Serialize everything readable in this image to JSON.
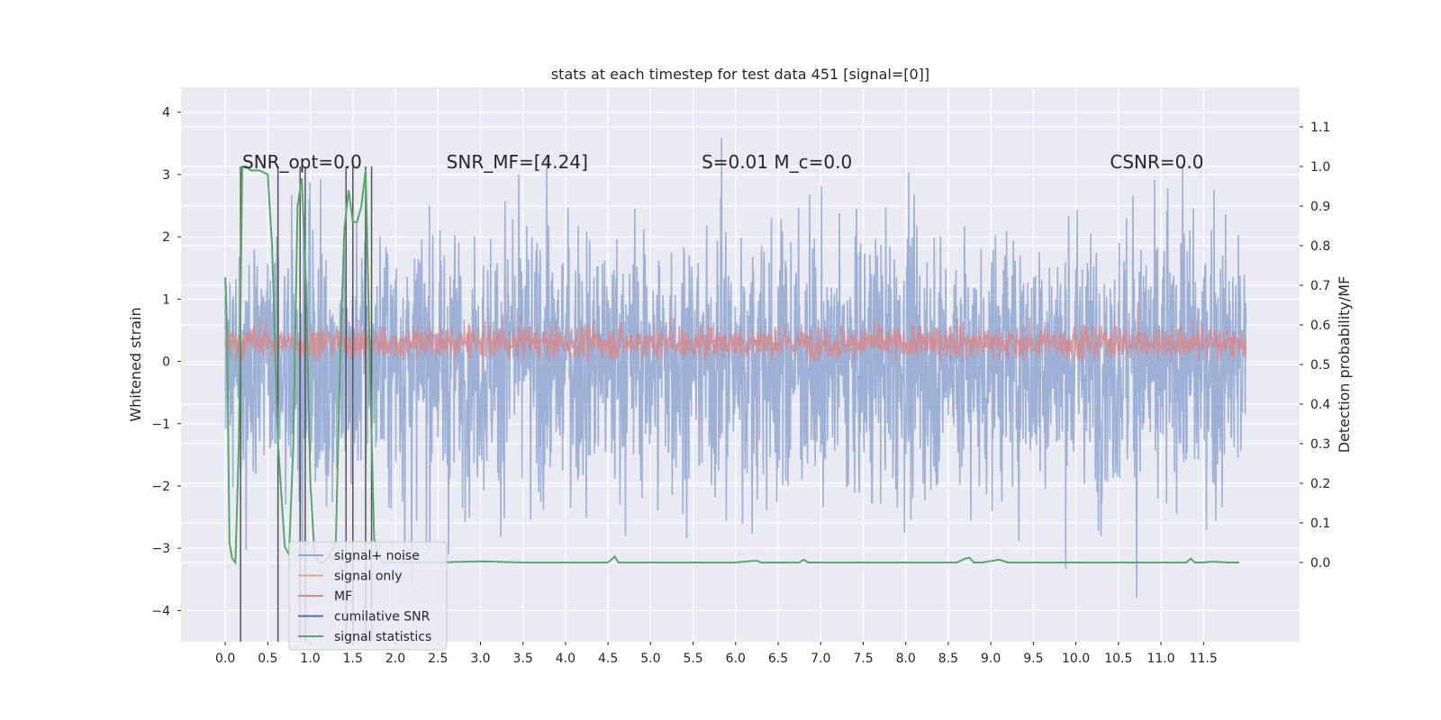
{
  "chart_data": {
    "type": "line",
    "title": "stats at each timestep for test data 451 [signal=[0]]",
    "xlabel": "",
    "ylabel": "Whitened strain",
    "ylabel_right": "Detection probability/MF",
    "xlim": [
      -0.52,
      12.63
    ],
    "ylim": [
      -4.5,
      4.4
    ],
    "ylim_right": [
      -0.2,
      1.2
    ],
    "x_ticks": [
      0.0,
      0.5,
      1.0,
      1.5,
      2.0,
      2.5,
      3.0,
      3.5,
      4.0,
      4.5,
      5.0,
      5.5,
      6.0,
      6.5,
      7.0,
      7.5,
      8.0,
      8.5,
      9.0,
      9.5,
      10.0,
      10.5,
      11.0,
      11.5
    ],
    "x_tick_labels": [
      "0.0",
      "0.5",
      "1.0",
      "1.5",
      "2.0",
      "2.5",
      "3.0",
      "3.5",
      "4.0",
      "4.5",
      "5.0",
      "5.5",
      "6.0",
      "6.5",
      "7.0",
      "7.5",
      "8.0",
      "8.5",
      "9.0",
      "9.5",
      "10.0",
      "10.5",
      "11.0",
      "11.5"
    ],
    "y_ticks": [
      -4,
      -3,
      -2,
      -1,
      0,
      1,
      2,
      3,
      4
    ],
    "y_tick_labels": [
      "−4",
      "−3",
      "−2",
      "−1",
      "0",
      "1",
      "2",
      "3",
      "4"
    ],
    "y_right_ticks": [
      0.0,
      0.1,
      0.2,
      0.3,
      0.4,
      0.5,
      0.6,
      0.7,
      0.8,
      0.9,
      1.0,
      1.1
    ],
    "y_right_tick_labels": [
      "0.0",
      "0.1",
      "0.2",
      "0.3",
      "0.4",
      "0.5",
      "0.6",
      "0.7",
      "0.8",
      "0.9",
      "1.0",
      "1.1"
    ],
    "annotations": [
      {
        "text": "SNR_opt=0.0",
        "x": 0.2,
        "y": 3.1
      },
      {
        "text": "SNR_MF=[4.24]",
        "x": 2.6,
        "y": 3.1
      },
      {
        "text": "S=0.01   M_c=0.0",
        "x": 5.6,
        "y": 3.1
      },
      {
        "text": "CSNR=0.0",
        "x": 10.4,
        "y": 3.1
      }
    ],
    "legend": {
      "position": "lower-left",
      "entries": [
        {
          "name": "signal+ noise",
          "color": "#8fa6d1"
        },
        {
          "name": "signal only",
          "color": "#e0a789"
        },
        {
          "name": "MF",
          "color": "#d68a8c"
        },
        {
          "name": "cumilative SNR",
          "color": "#4c72b0"
        },
        {
          "name": "signal statistics",
          "color": "#55a868"
        }
      ]
    },
    "grid": true,
    "series": [
      {
        "name": "signal+ noise",
        "axis": "left",
        "style": "dense-noise",
        "x_range": [
          0.0,
          12.0
        ],
        "envelope_typical": [
          -2.2,
          2.4
        ],
        "min": -4.1,
        "max": 4.0
      },
      {
        "name": "MF",
        "axis": "left",
        "style": "dense-noise",
        "x_range": [
          0.0,
          12.0
        ],
        "envelope_typical": [
          0.0,
          0.7
        ],
        "max": 1.0
      },
      {
        "name": "cumilative SNR",
        "axis": "right",
        "style": "vertical-lines",
        "x": [
          0.18,
          0.62,
          0.88,
          0.94,
          1.42,
          1.5,
          1.65,
          1.72
        ],
        "y_low": -0.2,
        "y_high": 1.0
      },
      {
        "name": "signal statistics",
        "axis": "right",
        "style": "line",
        "x": [
          0.0,
          0.02,
          0.05,
          0.08,
          0.12,
          0.16,
          0.2,
          0.25,
          0.3,
          0.4,
          0.5,
          0.55,
          0.62,
          0.7,
          0.75,
          0.8,
          0.85,
          0.9,
          0.95,
          1.0,
          1.05,
          1.1,
          1.15,
          1.2,
          1.3,
          1.35,
          1.4,
          1.45,
          1.5,
          1.55,
          1.6,
          1.65,
          1.7,
          1.75,
          1.8,
          1.85,
          1.9,
          2.0,
          2.5,
          3.0,
          3.5,
          4.0,
          4.5,
          4.58,
          4.62,
          4.68,
          5.0,
          6.0,
          6.2,
          6.25,
          6.3,
          6.75,
          6.8,
          6.85,
          7.0,
          8.0,
          8.6,
          8.7,
          8.75,
          8.8,
          8.9,
          9.1,
          9.2,
          9.5,
          10.0,
          11.0,
          11.3,
          11.35,
          11.4,
          11.5,
          11.6,
          11.8,
          11.92
        ],
        "y": [
          0.72,
          0.6,
          0.05,
          0.01,
          0.0,
          0.3,
          1.0,
          1.0,
          0.99,
          0.99,
          0.98,
          0.8,
          0.3,
          0.04,
          0.02,
          0.3,
          0.9,
          0.97,
          0.7,
          0.2,
          0.02,
          0.0,
          0.0,
          0.01,
          0.05,
          0.5,
          0.84,
          0.94,
          0.86,
          0.86,
          0.9,
          0.99,
          0.5,
          0.06,
          0.02,
          0.0,
          0.0,
          0.0,
          0.0,
          0.003,
          0.0,
          0.0,
          0.0,
          0.015,
          0.0,
          0.0,
          0.0,
          0.0,
          0.004,
          0.004,
          0.0,
          0.0,
          0.007,
          0.0,
          0.0,
          0.0,
          0.0,
          0.01,
          0.012,
          0.0,
          0.0,
          0.007,
          0.0,
          0.0,
          0.0,
          0.0,
          0.0,
          0.01,
          0.0,
          0.0,
          0.002,
          0.0,
          0.0
        ]
      }
    ]
  }
}
